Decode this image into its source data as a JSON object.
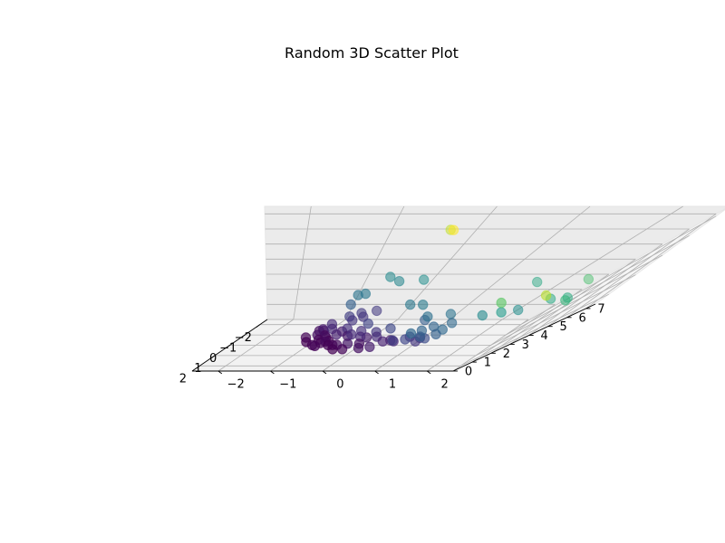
{
  "chart_data": {
    "type": "scatter",
    "projection": "3d",
    "title": "Random 3D Scatter Plot",
    "xlabel": "",
    "ylabel": "",
    "zlabel": "",
    "xlim": [
      -2.5,
      2.5
    ],
    "ylim": [
      -2.5,
      2.5
    ],
    "zlim": [
      0,
      7.5
    ],
    "xticks": [
      -2,
      -1,
      0,
      1,
      2
    ],
    "yticks": [
      -2,
      -1,
      0,
      1,
      2
    ],
    "zticks": [
      0,
      1,
      2,
      3,
      4,
      5,
      6,
      7
    ],
    "grid": true,
    "colormap": "viridis",
    "color_by": "z",
    "points": [
      {
        "x": -1.95,
        "y": -0.2,
        "z": 6.6
      },
      {
        "x": -2.45,
        "y": -0.3,
        "z": 6.0
      },
      {
        "x": -1.8,
        "y": -0.05,
        "z": 3.3
      },
      {
        "x": -2.1,
        "y": -0.6,
        "z": 3.2
      },
      {
        "x": -1.9,
        "y": -0.4,
        "z": 3.1
      },
      {
        "x": -1.0,
        "y": 1.6,
        "z": 4.0
      },
      {
        "x": -0.6,
        "y": 2.2,
        "z": 4.7
      },
      {
        "x": 0.1,
        "y": 2.1,
        "z": 4.0
      },
      {
        "x": 0.1,
        "y": 2.3,
        "z": 4.1
      },
      {
        "x": 0.5,
        "y": 2.3,
        "z": 4.4
      },
      {
        "x": 0.3,
        "y": 1.9,
        "z": 3.3
      },
      {
        "x": 1.2,
        "y": 1.9,
        "z": 5.9
      },
      {
        "x": 1.0,
        "y": 1.5,
        "z": 4.9
      },
      {
        "x": -1.4,
        "y": -0.8,
        "z": 2.6
      },
      {
        "x": -1.4,
        "y": -0.7,
        "z": 2.7
      },
      {
        "x": -1.2,
        "y": -0.8,
        "z": 2.1
      },
      {
        "x": -0.5,
        "y": 0.4,
        "z": 2.8
      },
      {
        "x": -0.6,
        "y": 0.2,
        "z": 2.7
      },
      {
        "x": 0.0,
        "y": 1.0,
        "z": 2.6
      },
      {
        "x": 0.6,
        "y": 1.5,
        "z": 3.2
      },
      {
        "x": 0.7,
        "y": 1.7,
        "z": 3.6
      },
      {
        "x": -0.1,
        "y": 0.7,
        "z": 2.0
      },
      {
        "x": 0.4,
        "y": 1.2,
        "z": 2.3
      },
      {
        "x": 0.9,
        "y": 0.9,
        "z": 2.2
      },
      {
        "x": 0.9,
        "y": 1.2,
        "z": 2.3
      },
      {
        "x": 0.6,
        "y": 1.0,
        "z": 2.2
      },
      {
        "x": 0.1,
        "y": 0.7,
        "z": 2.5
      },
      {
        "x": 1.2,
        "y": 0.8,
        "z": 2.3
      },
      {
        "x": 0.5,
        "y": 0.8,
        "z": 1.2
      },
      {
        "x": 0.6,
        "y": 1.0,
        "z": 1.2
      },
      {
        "x": 0.8,
        "y": 1.0,
        "z": 1.1
      },
      {
        "x": 1.0,
        "y": 1.1,
        "z": 1.6
      },
      {
        "x": 1.1,
        "y": 1.2,
        "z": 2.1
      },
      {
        "x": 1.2,
        "y": 1.0,
        "z": 2.0
      },
      {
        "x": -1.7,
        "y": -0.4,
        "z": 1.2
      },
      {
        "x": -1.5,
        "y": -0.6,
        "z": 1.2
      },
      {
        "x": -1.3,
        "y": -0.5,
        "z": 1.1
      },
      {
        "x": -1.1,
        "y": -0.7,
        "z": 1.3
      },
      {
        "x": -1.0,
        "y": -0.6,
        "z": 1.1
      },
      {
        "x": -0.9,
        "y": -0.9,
        "z": 0.9
      },
      {
        "x": -0.8,
        "y": -1.0,
        "z": 0.6
      },
      {
        "x": -0.6,
        "y": -0.8,
        "z": 0.8
      },
      {
        "x": -0.4,
        "y": -0.5,
        "z": 1.0
      },
      {
        "x": -0.2,
        "y": -0.2,
        "z": 1.0
      },
      {
        "x": 0.0,
        "y": 0.1,
        "z": 1.1
      },
      {
        "x": 0.2,
        "y": 0.2,
        "z": 0.9
      },
      {
        "x": 0.4,
        "y": 0.4,
        "z": 0.7
      },
      {
        "x": 0.2,
        "y": 0.5,
        "z": 0.6
      },
      {
        "x": 0.5,
        "y": 0.6,
        "z": 0.8
      },
      {
        "x": 0.4,
        "y": -0.2,
        "z": 0.5
      },
      {
        "x": 0.7,
        "y": 0.1,
        "z": 0.4
      },
      {
        "x": 0.8,
        "y": 0.3,
        "z": 0.6
      },
      {
        "x": -1.0,
        "y": -1.1,
        "z": 0.3
      },
      {
        "x": -0.9,
        "y": -1.0,
        "z": 0.4
      },
      {
        "x": -0.7,
        "y": -0.9,
        "z": 0.2
      },
      {
        "x": -0.5,
        "y": -1.0,
        "z": 0.4
      },
      {
        "x": -0.4,
        "y": -0.8,
        "z": 0.3
      },
      {
        "x": -0.3,
        "y": -0.9,
        "z": 0.2
      },
      {
        "x": -0.1,
        "y": -0.8,
        "z": 0.1
      },
      {
        "x": 0.0,
        "y": -0.7,
        "z": 0.3
      },
      {
        "x": 0.1,
        "y": -0.6,
        "z": 0.1
      },
      {
        "x": -0.3,
        "y": -0.7,
        "z": 0.1
      },
      {
        "x": 0.2,
        "y": -0.5,
        "z": 0.2
      },
      {
        "x": 0.3,
        "y": -0.4,
        "z": 0.3
      },
      {
        "x": 0.5,
        "y": -0.4,
        "z": 0.1
      },
      {
        "x": 0.6,
        "y": -0.2,
        "z": 0.2
      },
      {
        "x": 0.1,
        "y": -0.9,
        "z": 0.1
      },
      {
        "x": -0.2,
        "y": -1.1,
        "z": 0.1
      },
      {
        "x": -0.5,
        "y": -1.2,
        "z": 0.2
      },
      {
        "x": 0.3,
        "y": -0.8,
        "z": 0.2
      },
      {
        "x": 0.1,
        "y": -0.1,
        "z": 0.8
      },
      {
        "x": -0.05,
        "y": 0.0,
        "z": 0.6
      },
      {
        "x": 0.0,
        "y": -0.3,
        "z": 0.9
      },
      {
        "x": -0.3,
        "y": -0.4,
        "z": 0.5
      },
      {
        "x": -0.2,
        "y": -0.6,
        "z": 0.7
      },
      {
        "x": 0.3,
        "y": 0.0,
        "z": 0.4
      },
      {
        "x": -0.6,
        "y": -0.6,
        "z": 0.6
      },
      {
        "x": 0.9,
        "y": 0.6,
        "z": 1.3
      },
      {
        "x": 1.0,
        "y": 0.8,
        "z": 1.5
      },
      {
        "x": -0.4,
        "y": -0.2,
        "z": 1.4
      },
      {
        "x": 0.1,
        "y": 0.3,
        "z": 1.5
      }
    ]
  }
}
